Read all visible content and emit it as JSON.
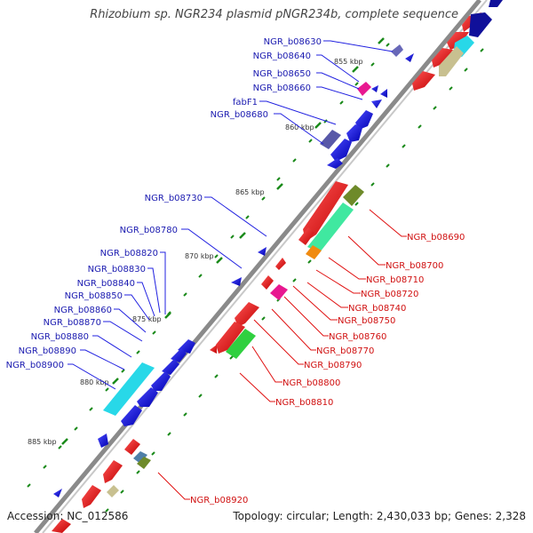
{
  "title": "Rhizobium sp. NGR234 plasmid pNGR234b, complete sequence",
  "footer": {
    "accession": "Accession: NC_012586",
    "summary": "Topology: circular; Length: 2,430,033 bp; Genes: 2,328"
  },
  "ruler": {
    "unit": "kbp",
    "ticks": [
      "855 kbp",
      "860 kbp",
      "865 kbp",
      "870 kbp",
      "875 kbp",
      "880 kbp",
      "885 kbp"
    ]
  },
  "colors": {
    "forward_gene": "#1212e0",
    "reverse_gene": "#f01010",
    "backbone": "#8a8a8a",
    "tick": "#1a8a1a",
    "label_forward": "#1a1ab0",
    "label_reverse": "#d01010"
  },
  "forward_labels": [
    "NGR_b08630",
    "NGR_b08640",
    "NGR_b08650",
    "NGR_b08660",
    "fabF1",
    "NGR_b08680",
    "NGR_b08730",
    "NGR_b08780",
    "NGR_b08820",
    "NGR_b08830",
    "NGR_b08840",
    "NGR_b08850",
    "NGR_b08860",
    "NGR_b08870",
    "NGR_b08880",
    "NGR_b08890",
    "NGR_b08900"
  ],
  "reverse_labels": [
    "NGR_b08690",
    "NGR_b08700",
    "NGR_b08710",
    "NGR_b08720",
    "NGR_b08740",
    "NGR_b08750",
    "NGR_b08760",
    "NGR_b08770",
    "NGR_b08790",
    "NGR_b08800",
    "NGR_b08810",
    "NGR_b08920"
  ]
}
